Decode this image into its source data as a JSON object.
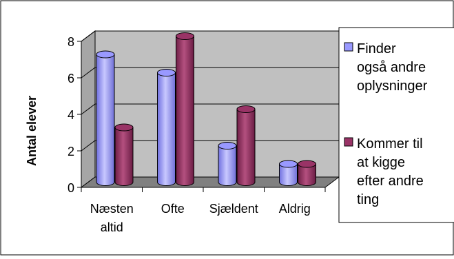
{
  "chart_data": {
    "type": "bar",
    "categories": [
      "Næsten altid",
      "Ofte",
      "Sjældent",
      "Aldrig"
    ],
    "category_lines": [
      [
        "Næsten",
        "altid"
      ],
      [
        "Ofte"
      ],
      [
        "Sjældent"
      ],
      [
        "Aldrig"
      ]
    ],
    "series": [
      {
        "name": "Finder også andre oplysninger",
        "legend_lines": [
          "Finder",
          "også andre",
          "oplysninger"
        ],
        "values": [
          7,
          6,
          2,
          1
        ],
        "color": "#9999FF"
      },
      {
        "name": "Kommer til at kigge efter andre ting",
        "legend_lines": [
          "Kommer til",
          "at kigge",
          "efter andre",
          "ting"
        ],
        "values": [
          3,
          8,
          4,
          1
        ],
        "color": "#993366"
      }
    ],
    "yticks": [
      "0",
      "2",
      "4",
      "6",
      "8"
    ],
    "ylim": [
      0,
      8
    ],
    "xlabel": "",
    "ylabel": "Antal elever",
    "grid": true,
    "legend_position": "right",
    "wall_color": "#C0C0C0",
    "floor_color": "#808080"
  }
}
